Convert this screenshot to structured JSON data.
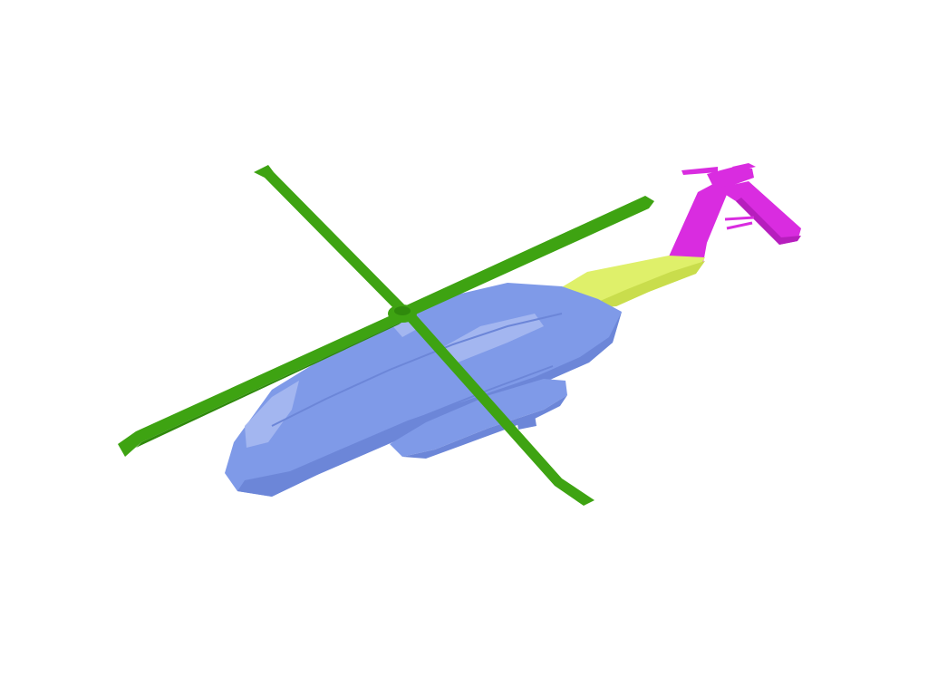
{
  "scene": {
    "background_color": "#ffffff",
    "subject": "helicopter",
    "parts": {
      "fuselage": {
        "color": "#7f9ae8",
        "shade": "#6c86d8",
        "highlight": "#a3b6f0"
      },
      "main_rotor": {
        "color": "#3ea312",
        "shade": "#2f8a0c"
      },
      "tail_boom": {
        "color": "#dff06a",
        "shade": "#c9dd4c"
      },
      "tail_fin": {
        "color": "#d92ce0",
        "shade": "#b61ebd"
      }
    }
  }
}
